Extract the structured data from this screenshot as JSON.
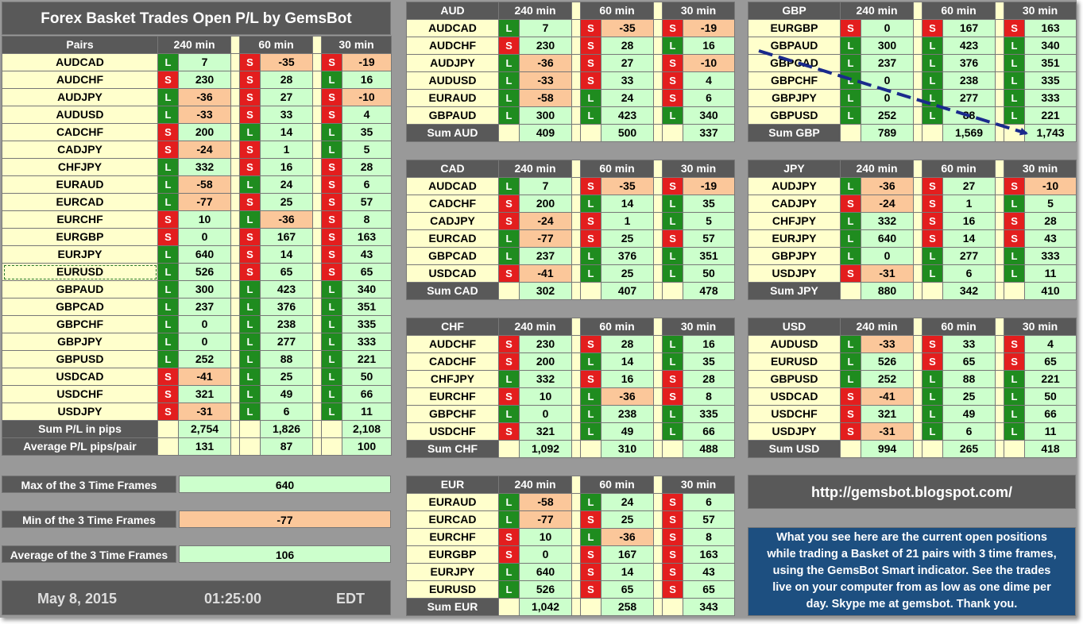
{
  "title": "Forex Basket Trades Open P/L by GemsBot",
  "headers": {
    "pairs": "Pairs",
    "tf": [
      "240 min",
      "60 min",
      "30 min"
    ]
  },
  "main_pairs": [
    {
      "pair": "AUDCAD",
      "d": [
        [
          "L",
          "7"
        ],
        [
          "S",
          "-35"
        ],
        [
          "S",
          "-19"
        ]
      ]
    },
    {
      "pair": "AUDCHF",
      "d": [
        [
          "S",
          "230"
        ],
        [
          "S",
          "28"
        ],
        [
          "L",
          "16"
        ]
      ]
    },
    {
      "pair": "AUDJPY",
      "d": [
        [
          "L",
          "-36"
        ],
        [
          "S",
          "27"
        ],
        [
          "S",
          "-10"
        ]
      ]
    },
    {
      "pair": "AUDUSD",
      "d": [
        [
          "L",
          "-33"
        ],
        [
          "S",
          "33"
        ],
        [
          "S",
          "4"
        ]
      ]
    },
    {
      "pair": "CADCHF",
      "d": [
        [
          "S",
          "200"
        ],
        [
          "L",
          "14"
        ],
        [
          "L",
          "35"
        ]
      ]
    },
    {
      "pair": "CADJPY",
      "d": [
        [
          "S",
          "-24"
        ],
        [
          "S",
          "1"
        ],
        [
          "L",
          "5"
        ]
      ]
    },
    {
      "pair": "CHFJPY",
      "d": [
        [
          "L",
          "332"
        ],
        [
          "S",
          "16"
        ],
        [
          "S",
          "28"
        ]
      ]
    },
    {
      "pair": "EURAUD",
      "d": [
        [
          "L",
          "-58"
        ],
        [
          "L",
          "24"
        ],
        [
          "S",
          "6"
        ]
      ]
    },
    {
      "pair": "EURCAD",
      "d": [
        [
          "L",
          "-77"
        ],
        [
          "S",
          "25"
        ],
        [
          "S",
          "57"
        ]
      ]
    },
    {
      "pair": "EURCHF",
      "d": [
        [
          "S",
          "10"
        ],
        [
          "L",
          "-36"
        ],
        [
          "S",
          "8"
        ]
      ]
    },
    {
      "pair": "EURGBP",
      "d": [
        [
          "S",
          "0"
        ],
        [
          "S",
          "167"
        ],
        [
          "S",
          "163"
        ]
      ]
    },
    {
      "pair": "EURJPY",
      "d": [
        [
          "L",
          "640"
        ],
        [
          "S",
          "14"
        ],
        [
          "S",
          "43"
        ]
      ]
    },
    {
      "pair": "EURUSD",
      "d": [
        [
          "L",
          "526"
        ],
        [
          "S",
          "65"
        ],
        [
          "S",
          "65"
        ]
      ]
    },
    {
      "pair": "GBPAUD",
      "d": [
        [
          "L",
          "300"
        ],
        [
          "L",
          "423"
        ],
        [
          "L",
          "340"
        ]
      ]
    },
    {
      "pair": "GBPCAD",
      "d": [
        [
          "L",
          "237"
        ],
        [
          "L",
          "376"
        ],
        [
          "L",
          "351"
        ]
      ]
    },
    {
      "pair": "GBPCHF",
      "d": [
        [
          "L",
          "0"
        ],
        [
          "L",
          "238"
        ],
        [
          "L",
          "335"
        ]
      ]
    },
    {
      "pair": "GBPJPY",
      "d": [
        [
          "L",
          "0"
        ],
        [
          "L",
          "277"
        ],
        [
          "L",
          "333"
        ]
      ]
    },
    {
      "pair": "GBPUSD",
      "d": [
        [
          "L",
          "252"
        ],
        [
          "L",
          "88"
        ],
        [
          "L",
          "221"
        ]
      ]
    },
    {
      "pair": "USDCAD",
      "d": [
        [
          "S",
          "-41"
        ],
        [
          "L",
          "25"
        ],
        [
          "L",
          "50"
        ]
      ]
    },
    {
      "pair": "USDCHF",
      "d": [
        [
          "S",
          "321"
        ],
        [
          "L",
          "49"
        ],
        [
          "L",
          "66"
        ]
      ]
    },
    {
      "pair": "USDJPY",
      "d": [
        [
          "S",
          "-31"
        ],
        [
          "L",
          "6"
        ],
        [
          "L",
          "11"
        ]
      ]
    }
  ],
  "main_sums": [
    {
      "label": "Sum P/L in pips",
      "vals": [
        "2,754",
        "1,826",
        "2,108"
      ]
    },
    {
      "label": "Average P/L pips/pair",
      "vals": [
        "131",
        "87",
        "100"
      ]
    }
  ],
  "stats": {
    "max_label": "Max of the 3 Time Frames",
    "max": "640",
    "min_label": "Min of the 3 Time Frames",
    "min": "-77",
    "avg_label": "Average of the 3 Time Frames",
    "avg": "106"
  },
  "date": "May 8, 2015",
  "time": "01:25:00",
  "tz": "EDT",
  "url": "http://gemsbot.blogspot.com/",
  "info": [
    "What you see here are the current open positions",
    "while trading a Basket of 21 pairs with 3 time frames,",
    "using the GemsBot Smart indicator. See the trades",
    "live on your computer from as low as one dime per",
    "day. Skype me at gemsbot. Thank you."
  ],
  "baskets": {
    "AUD": {
      "name": "AUD",
      "sum_label": "Sum AUD",
      "sums": [
        "409",
        "500",
        "337"
      ],
      "rows": [
        {
          "pair": "AUDCAD",
          "d": [
            [
              "L",
              "7"
            ],
            [
              "S",
              "-35"
            ],
            [
              "S",
              "-19"
            ]
          ]
        },
        {
          "pair": "AUDCHF",
          "d": [
            [
              "S",
              "230"
            ],
            [
              "S",
              "28"
            ],
            [
              "L",
              "16"
            ]
          ]
        },
        {
          "pair": "AUDJPY",
          "d": [
            [
              "L",
              "-36"
            ],
            [
              "S",
              "27"
            ],
            [
              "S",
              "-10"
            ]
          ]
        },
        {
          "pair": "AUDUSD",
          "d": [
            [
              "L",
              "-33"
            ],
            [
              "S",
              "33"
            ],
            [
              "S",
              "4"
            ]
          ]
        },
        {
          "pair": "EURAUD",
          "d": [
            [
              "L",
              "-58"
            ],
            [
              "L",
              "24"
            ],
            [
              "S",
              "6"
            ]
          ]
        },
        {
          "pair": "GBPAUD",
          "d": [
            [
              "L",
              "300"
            ],
            [
              "L",
              "423"
            ],
            [
              "L",
              "340"
            ]
          ]
        }
      ]
    },
    "GBP": {
      "name": "GBP",
      "sum_label": "Sum GBP",
      "sums": [
        "789",
        "1,569",
        "1,743"
      ],
      "rows": [
        {
          "pair": "EURGBP",
          "d": [
            [
              "S",
              "0"
            ],
            [
              "S",
              "167"
            ],
            [
              "S",
              "163"
            ]
          ]
        },
        {
          "pair": "GBPAUD",
          "d": [
            [
              "L",
              "300"
            ],
            [
              "L",
              "423"
            ],
            [
              "L",
              "340"
            ]
          ]
        },
        {
          "pair": "GBPCAD",
          "d": [
            [
              "L",
              "237"
            ],
            [
              "L",
              "376"
            ],
            [
              "L",
              "351"
            ]
          ]
        },
        {
          "pair": "GBPCHF",
          "d": [
            [
              "L",
              "0"
            ],
            [
              "L",
              "238"
            ],
            [
              "L",
              "335"
            ]
          ]
        },
        {
          "pair": "GBPJPY",
          "d": [
            [
              "L",
              "0"
            ],
            [
              "L",
              "277"
            ],
            [
              "L",
              "333"
            ]
          ]
        },
        {
          "pair": "GBPUSD",
          "d": [
            [
              "L",
              "252"
            ],
            [
              "L",
              "88"
            ],
            [
              "L",
              "221"
            ]
          ]
        }
      ]
    },
    "CAD": {
      "name": "CAD",
      "sum_label": "Sum CAD",
      "sums": [
        "302",
        "407",
        "478"
      ],
      "rows": [
        {
          "pair": "AUDCAD",
          "d": [
            [
              "L",
              "7"
            ],
            [
              "S",
              "-35"
            ],
            [
              "S",
              "-19"
            ]
          ]
        },
        {
          "pair": "CADCHF",
          "d": [
            [
              "S",
              "200"
            ],
            [
              "L",
              "14"
            ],
            [
              "L",
              "35"
            ]
          ]
        },
        {
          "pair": "CADJPY",
          "d": [
            [
              "S",
              "-24"
            ],
            [
              "S",
              "1"
            ],
            [
              "L",
              "5"
            ]
          ]
        },
        {
          "pair": "EURCAD",
          "d": [
            [
              "L",
              "-77"
            ],
            [
              "S",
              "25"
            ],
            [
              "S",
              "57"
            ]
          ]
        },
        {
          "pair": "GBPCAD",
          "d": [
            [
              "L",
              "237"
            ],
            [
              "L",
              "376"
            ],
            [
              "L",
              "351"
            ]
          ]
        },
        {
          "pair": "USDCAD",
          "d": [
            [
              "S",
              "-41"
            ],
            [
              "L",
              "25"
            ],
            [
              "L",
              "50"
            ]
          ]
        }
      ]
    },
    "JPY": {
      "name": "JPY",
      "sum_label": "Sum JPY",
      "sums": [
        "880",
        "342",
        "410"
      ],
      "rows": [
        {
          "pair": "AUDJPY",
          "d": [
            [
              "L",
              "-36"
            ],
            [
              "S",
              "27"
            ],
            [
              "S",
              "-10"
            ]
          ]
        },
        {
          "pair": "CADJPY",
          "d": [
            [
              "S",
              "-24"
            ],
            [
              "S",
              "1"
            ],
            [
              "L",
              "5"
            ]
          ]
        },
        {
          "pair": "CHFJPY",
          "d": [
            [
              "L",
              "332"
            ],
            [
              "S",
              "16"
            ],
            [
              "S",
              "28"
            ]
          ]
        },
        {
          "pair": "EURJPY",
          "d": [
            [
              "L",
              "640"
            ],
            [
              "S",
              "14"
            ],
            [
              "S",
              "43"
            ]
          ]
        },
        {
          "pair": "GBPJPY",
          "d": [
            [
              "L",
              "0"
            ],
            [
              "L",
              "277"
            ],
            [
              "L",
              "333"
            ]
          ]
        },
        {
          "pair": "USDJPY",
          "d": [
            [
              "S",
              "-31"
            ],
            [
              "L",
              "6"
            ],
            [
              "L",
              "11"
            ]
          ]
        }
      ]
    },
    "CHF": {
      "name": "CHF",
      "sum_label": "Sum CHF",
      "sums": [
        "1,092",
        "310",
        "488"
      ],
      "rows": [
        {
          "pair": "AUDCHF",
          "d": [
            [
              "S",
              "230"
            ],
            [
              "S",
              "28"
            ],
            [
              "L",
              "16"
            ]
          ]
        },
        {
          "pair": "CADCHF",
          "d": [
            [
              "S",
              "200"
            ],
            [
              "L",
              "14"
            ],
            [
              "L",
              "35"
            ]
          ]
        },
        {
          "pair": "CHFJPY",
          "d": [
            [
              "L",
              "332"
            ],
            [
              "S",
              "16"
            ],
            [
              "S",
              "28"
            ]
          ]
        },
        {
          "pair": "EURCHF",
          "d": [
            [
              "S",
              "10"
            ],
            [
              "L",
              "-36"
            ],
            [
              "S",
              "8"
            ]
          ]
        },
        {
          "pair": "GBPCHF",
          "d": [
            [
              "L",
              "0"
            ],
            [
              "L",
              "238"
            ],
            [
              "L",
              "335"
            ]
          ]
        },
        {
          "pair": "USDCHF",
          "d": [
            [
              "S",
              "321"
            ],
            [
              "L",
              "49"
            ],
            [
              "L",
              "66"
            ]
          ]
        }
      ]
    },
    "USD": {
      "name": "USD",
      "sum_label": "Sum USD",
      "sums": [
        "994",
        "265",
        "418"
      ],
      "rows": [
        {
          "pair": "AUDUSD",
          "d": [
            [
              "L",
              "-33"
            ],
            [
              "S",
              "33"
            ],
            [
              "S",
              "4"
            ]
          ]
        },
        {
          "pair": "EURUSD",
          "d": [
            [
              "L",
              "526"
            ],
            [
              "S",
              "65"
            ],
            [
              "S",
              "65"
            ]
          ]
        },
        {
          "pair": "GBPUSD",
          "d": [
            [
              "L",
              "252"
            ],
            [
              "L",
              "88"
            ],
            [
              "L",
              "221"
            ]
          ]
        },
        {
          "pair": "USDCAD",
          "d": [
            [
              "S",
              "-41"
            ],
            [
              "L",
              "25"
            ],
            [
              "L",
              "50"
            ]
          ]
        },
        {
          "pair": "USDCHF",
          "d": [
            [
              "S",
              "321"
            ],
            [
              "L",
              "49"
            ],
            [
              "L",
              "66"
            ]
          ]
        },
        {
          "pair": "USDJPY",
          "d": [
            [
              "S",
              "-31"
            ],
            [
              "L",
              "6"
            ],
            [
              "L",
              "11"
            ]
          ]
        }
      ]
    },
    "EUR": {
      "name": "EUR",
      "sum_label": "Sum EUR",
      "sums": [
        "1,042",
        "258",
        "343"
      ],
      "rows": [
        {
          "pair": "EURAUD",
          "d": [
            [
              "L",
              "-58"
            ],
            [
              "L",
              "24"
            ],
            [
              "S",
              "6"
            ]
          ]
        },
        {
          "pair": "EURCAD",
          "d": [
            [
              "L",
              "-77"
            ],
            [
              "S",
              "25"
            ],
            [
              "S",
              "57"
            ]
          ]
        },
        {
          "pair": "EURCHF",
          "d": [
            [
              "S",
              "10"
            ],
            [
              "L",
              "-36"
            ],
            [
              "S",
              "8"
            ]
          ]
        },
        {
          "pair": "EURGBP",
          "d": [
            [
              "S",
              "0"
            ],
            [
              "S",
              "167"
            ],
            [
              "S",
              "163"
            ]
          ]
        },
        {
          "pair": "EURJPY",
          "d": [
            [
              "L",
              "640"
            ],
            [
              "S",
              "14"
            ],
            [
              "S",
              "43"
            ]
          ]
        },
        {
          "pair": "EURUSD",
          "d": [
            [
              "L",
              "526"
            ],
            [
              "S",
              "65"
            ],
            [
              "S",
              "65"
            ]
          ]
        }
      ]
    }
  },
  "colors": {
    "background": "#999999",
    "header": "#595959",
    "pair_cell": "#ffffcc",
    "long": "#1f8c1f",
    "short": "#e31e1e",
    "positive": "#ccffcc",
    "negative": "#fbc79a",
    "info_box": "#1d4f80",
    "arrow": "#1a2a8c"
  },
  "selected_pair": "EURUSD"
}
